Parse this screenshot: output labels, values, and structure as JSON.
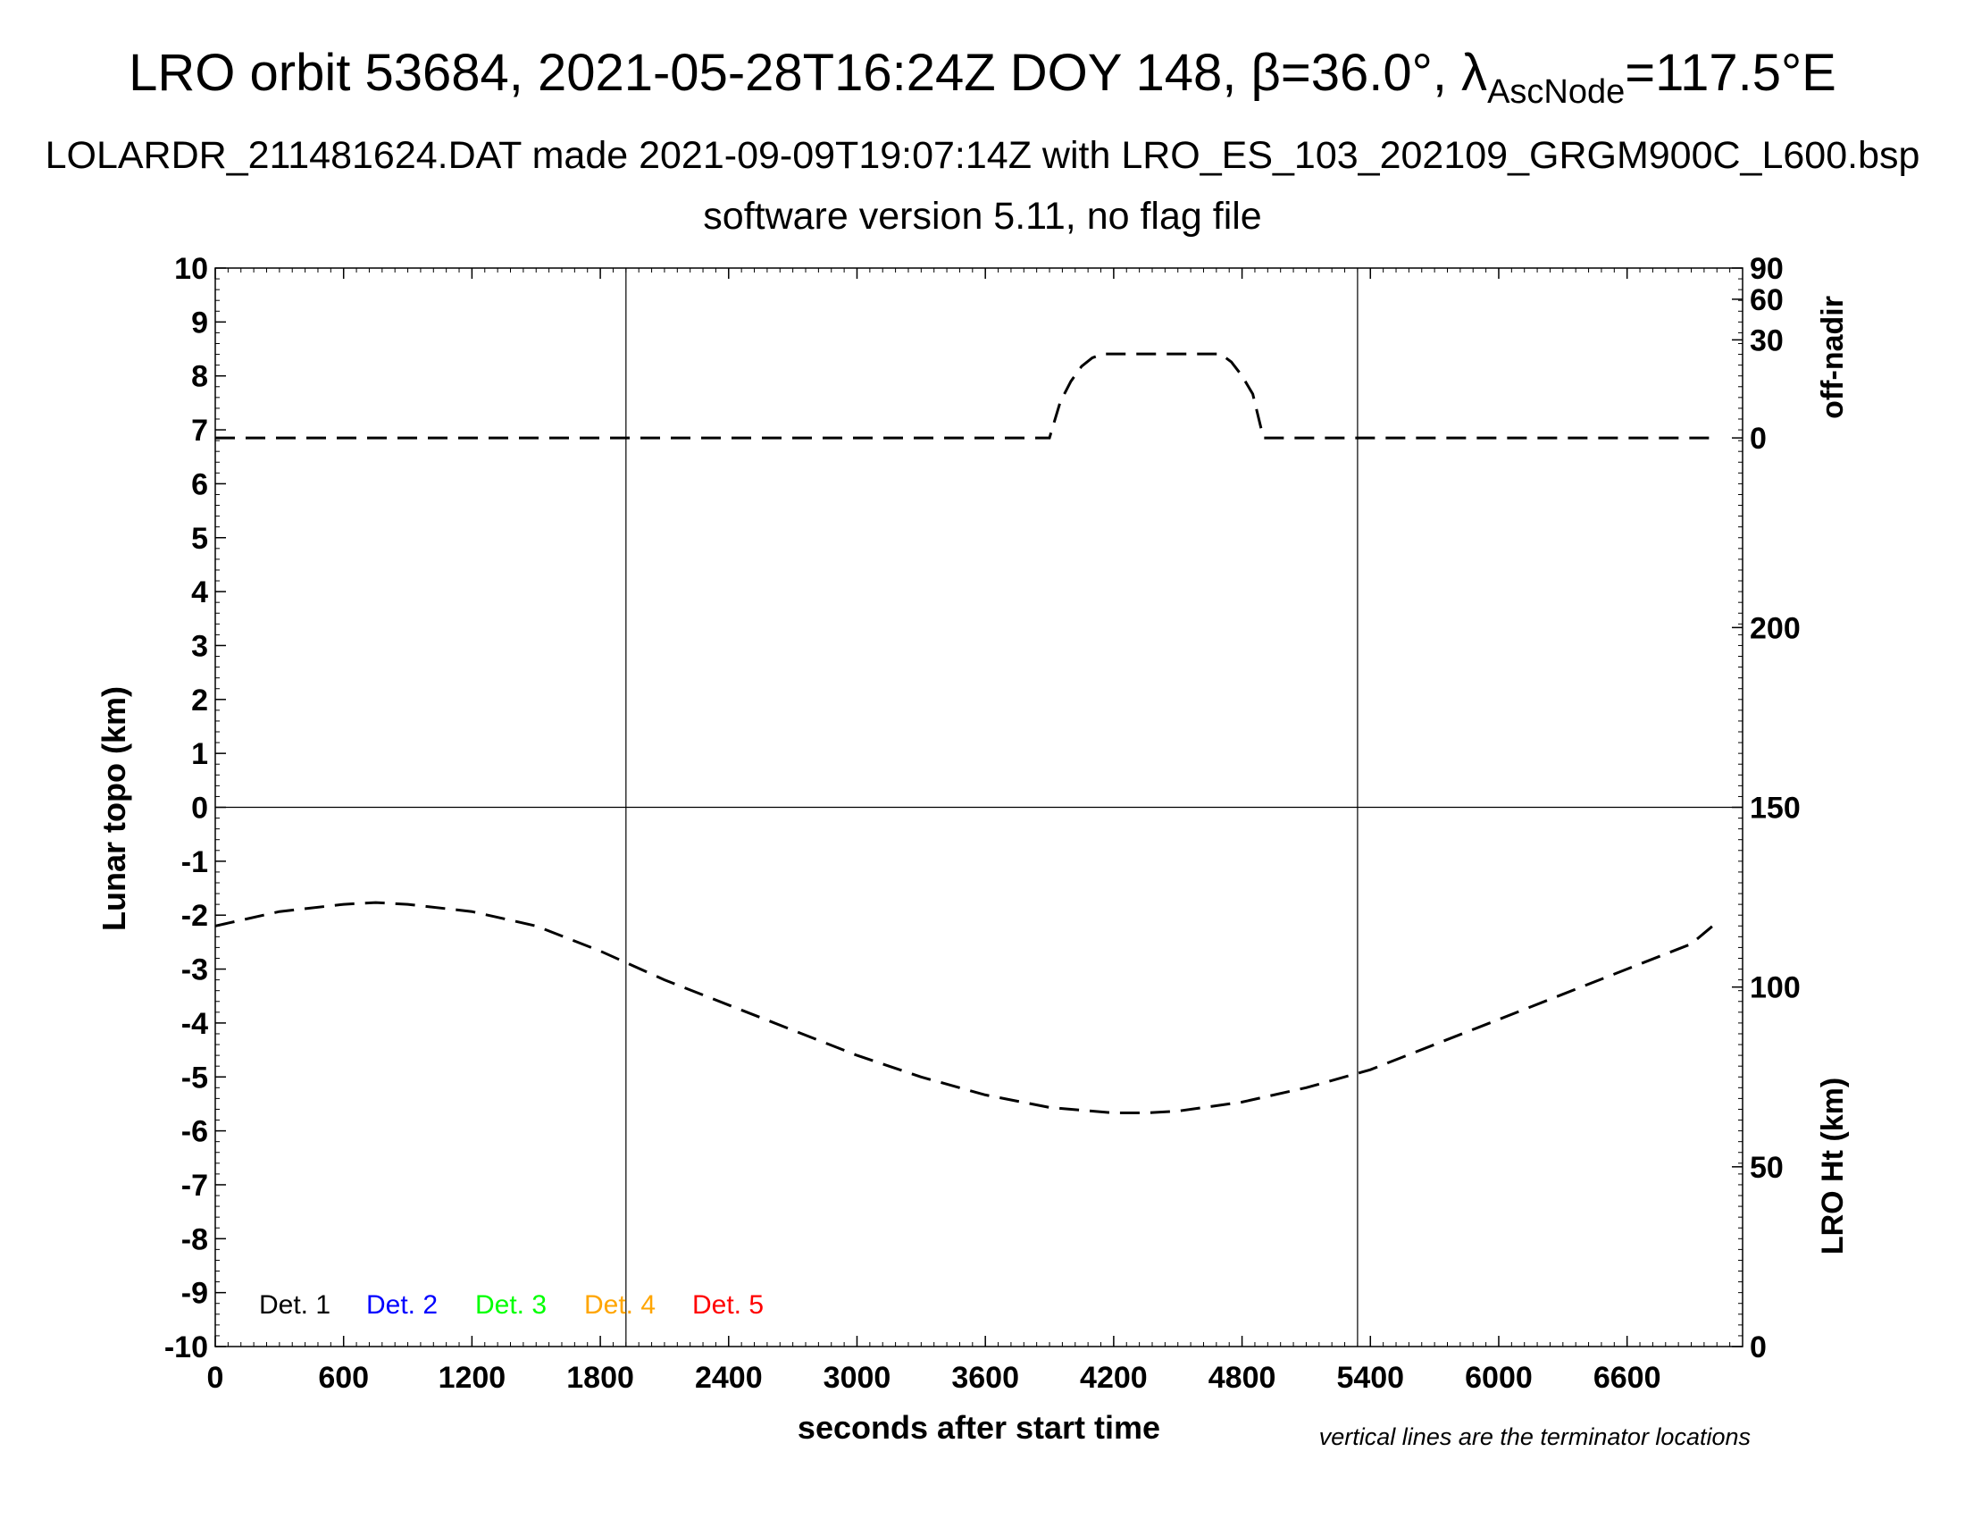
{
  "title": {
    "line1_prefix": "LRO orbit 53684, 2021-05-28T16:24Z DOY 148, β=36.0°, λ",
    "line1_sub": "AscNode",
    "line1_suffix": "=117.5°E",
    "line2": "LOLARDR_211481624.DAT made 2021-09-09T19:07:14Z with LRO_ES_103_202109_GRGM900C_L600.bsp",
    "line3": "software version 5.11, no flag file"
  },
  "chart_data": {
    "type": "line",
    "xlabel": "seconds after start time",
    "ylabel_left": "Lunar topo (km)",
    "ylabel_right_top": "off-nadir",
    "ylabel_right_bottom": "LRO Ht (km)",
    "xlim": [
      0,
      7140
    ],
    "ylim": [
      -10,
      10
    ],
    "x_ticks": [
      "0",
      "600",
      "1200",
      "1800",
      "2400",
      "3000",
      "3600",
      "4200",
      "4800",
      "5400",
      "6000",
      "6600"
    ],
    "x_tick_values": [
      0,
      600,
      1200,
      1800,
      2400,
      3000,
      3600,
      4200,
      4800,
      5400,
      6000,
      6600
    ],
    "y_ticks": [
      "10",
      "9",
      "8",
      "7",
      "6",
      "5",
      "4",
      "3",
      "2",
      "1",
      "0",
      "-1",
      "-2",
      "-3",
      "-4",
      "-5",
      "-6",
      "-7",
      "-8",
      "-9",
      "-10"
    ],
    "y_tick_values": [
      10,
      9,
      8,
      7,
      6,
      5,
      4,
      3,
      2,
      1,
      0,
      -1,
      -2,
      -3,
      -4,
      -5,
      -6,
      -7,
      -8,
      -9,
      -10
    ],
    "off_nadir_ticks": [
      "90",
      "60",
      "30",
      "0"
    ],
    "off_nadir_tick_values": [
      90,
      60,
      30,
      0
    ],
    "off_nadir_range": [
      0,
      90
    ],
    "lro_ht_ticks": [
      "200",
      "150",
      "100",
      "50",
      "0"
    ],
    "lro_ht_tick_values": [
      200,
      150,
      100,
      50,
      0
    ],
    "lro_ht_range": [
      0,
      300
    ],
    "terminator_x": [
      1920,
      5340
    ],
    "legend": [
      "Det. 1",
      "Det. 2",
      "Det. 3",
      "Det. 4",
      "Det. 5"
    ],
    "legend_colors": [
      "#000000",
      "#0000ff",
      "#00ff00",
      "#ffa500",
      "#ff0000"
    ],
    "note": "vertical lines are the terminator locations",
    "series": [
      {
        "name": "off-nadir",
        "axis": "off-nadir",
        "x": [
          0,
          3900,
          3950,
          4000,
          4050,
          4100,
          4150,
          4200,
          4400,
          4600,
          4700,
          4750,
          4800,
          4850,
          4900,
          7000
        ],
        "y": [
          0,
          0,
          4,
          10,
          16,
          20,
          22,
          22,
          22,
          22,
          22,
          18,
          12,
          6,
          0,
          0
        ]
      },
      {
        "name": "LRO Ht",
        "axis": "LRO Ht (km)",
        "x": [
          0,
          300,
          600,
          750,
          900,
          1200,
          1500,
          1800,
          2100,
          2400,
          2700,
          3000,
          3300,
          3600,
          3900,
          4200,
          4350,
          4500,
          4800,
          5100,
          5400,
          5700,
          6000,
          6300,
          6600,
          6900,
          7000
        ],
        "y": [
          117,
          121,
          123,
          123.5,
          123,
          121,
          117,
          110,
          102,
          95,
          88,
          81,
          75,
          70,
          66.5,
          65,
          65,
          65.5,
          68,
          72,
          77,
          84,
          91,
          98,
          105,
          112,
          117
        ]
      }
    ]
  }
}
